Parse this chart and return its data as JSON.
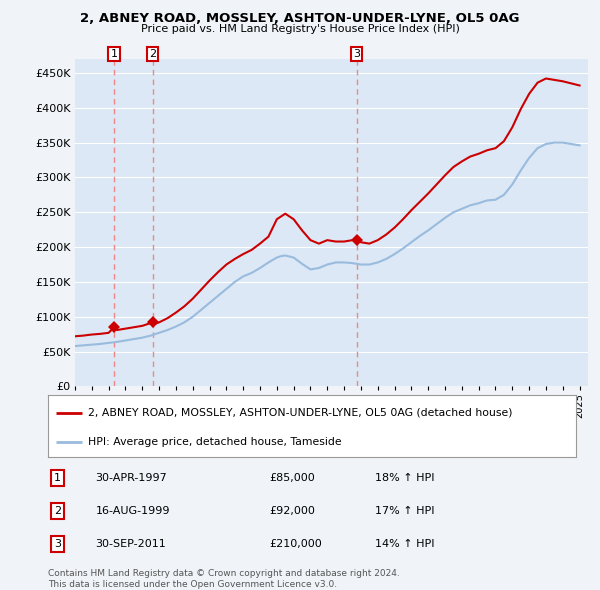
{
  "title": "2, ABNEY ROAD, MOSSLEY, ASHTON-UNDER-LYNE, OL5 0AG",
  "subtitle": "Price paid vs. HM Land Registry's House Price Index (HPI)",
  "property_label": "2, ABNEY ROAD, MOSSLEY, ASHTON-UNDER-LYNE, OL5 0AG (detached house)",
  "hpi_label": "HPI: Average price, detached house, Tameside",
  "copyright": "Contains HM Land Registry data © Crown copyright and database right 2024.\nThis data is licensed under the Open Government Licence v3.0.",
  "sale_points": [
    {
      "date_num": 1997.33,
      "price": 85000,
      "label": "1"
    },
    {
      "date_num": 1999.62,
      "price": 92000,
      "label": "2"
    },
    {
      "date_num": 2011.75,
      "price": 210000,
      "label": "3"
    }
  ],
  "sale_annotations": [
    {
      "label": "1",
      "date": "30-APR-1997",
      "price": "£85,000",
      "hpi_pct": "18% ↑ HPI"
    },
    {
      "label": "2",
      "date": "16-AUG-1999",
      "price": "£92,000",
      "hpi_pct": "17% ↑ HPI"
    },
    {
      "label": "3",
      "date": "30-SEP-2011",
      "price": "£210,000",
      "hpi_pct": "14% ↑ HPI"
    }
  ],
  "vline_dates": [
    1997.33,
    1999.62,
    2011.75
  ],
  "xlim": [
    1995.0,
    2025.5
  ],
  "ylim": [
    0,
    470000
  ],
  "yticks": [
    0,
    50000,
    100000,
    150000,
    200000,
    250000,
    300000,
    350000,
    400000,
    450000
  ],
  "xticks": [
    1995,
    1996,
    1997,
    1998,
    1999,
    2000,
    2001,
    2002,
    2003,
    2004,
    2005,
    2006,
    2007,
    2008,
    2009,
    2010,
    2011,
    2012,
    2013,
    2014,
    2015,
    2016,
    2017,
    2018,
    2019,
    2020,
    2021,
    2022,
    2023,
    2024,
    2025
  ],
  "property_color": "#cc0000",
  "hpi_color": "#99bbdd",
  "vline_color": "#ee8888",
  "background_color": "#f0f4f8",
  "plot_bg_color": "#dce8f5",
  "grid_color": "#ffffff",
  "sale_marker_color": "#cc0000",
  "label_box_color": "#cc0000",
  "hpi_data": [
    [
      1995.0,
      58000
    ],
    [
      1995.25,
      58500
    ],
    [
      1995.5,
      59000
    ],
    [
      1995.75,
      59500
    ],
    [
      1996.0,
      60000
    ],
    [
      1996.25,
      60500
    ],
    [
      1996.5,
      61000
    ],
    [
      1996.75,
      61800
    ],
    [
      1997.0,
      62500
    ],
    [
      1997.25,
      63200
    ],
    [
      1997.5,
      64000
    ],
    [
      1997.75,
      65000
    ],
    [
      1998.0,
      66000
    ],
    [
      1998.25,
      67000
    ],
    [
      1998.5,
      68000
    ],
    [
      1998.75,
      69000
    ],
    [
      1999.0,
      70000
    ],
    [
      1999.25,
      71500
    ],
    [
      1999.5,
      73000
    ],
    [
      1999.75,
      75000
    ],
    [
      2000.0,
      77000
    ],
    [
      2000.25,
      79000
    ],
    [
      2000.5,
      81000
    ],
    [
      2000.75,
      83500
    ],
    [
      2001.0,
      86000
    ],
    [
      2001.25,
      89000
    ],
    [
      2001.5,
      92000
    ],
    [
      2001.75,
      96000
    ],
    [
      2002.0,
      100000
    ],
    [
      2002.25,
      105000
    ],
    [
      2002.5,
      110000
    ],
    [
      2002.75,
      115000
    ],
    [
      2003.0,
      120000
    ],
    [
      2003.25,
      125000
    ],
    [
      2003.5,
      130000
    ],
    [
      2003.75,
      135000
    ],
    [
      2004.0,
      140000
    ],
    [
      2004.25,
      145000
    ],
    [
      2004.5,
      150000
    ],
    [
      2004.75,
      154000
    ],
    [
      2005.0,
      158000
    ],
    [
      2005.25,
      160500
    ],
    [
      2005.5,
      163000
    ],
    [
      2005.75,
      166500
    ],
    [
      2006.0,
      170000
    ],
    [
      2006.25,
      174000
    ],
    [
      2006.5,
      178000
    ],
    [
      2006.75,
      181500
    ],
    [
      2007.0,
      185000
    ],
    [
      2007.25,
      187000
    ],
    [
      2007.5,
      188000
    ],
    [
      2007.75,
      186500
    ],
    [
      2008.0,
      185000
    ],
    [
      2008.25,
      180500
    ],
    [
      2008.5,
      176000
    ],
    [
      2008.75,
      172000
    ],
    [
      2009.0,
      168000
    ],
    [
      2009.25,
      169000
    ],
    [
      2009.5,
      170000
    ],
    [
      2009.75,
      172500
    ],
    [
      2010.0,
      175000
    ],
    [
      2010.25,
      176500
    ],
    [
      2010.5,
      178000
    ],
    [
      2010.75,
      178000
    ],
    [
      2011.0,
      178000
    ],
    [
      2011.25,
      177500
    ],
    [
      2011.5,
      177000
    ],
    [
      2011.75,
      176000
    ],
    [
      2012.0,
      175000
    ],
    [
      2012.25,
      175000
    ],
    [
      2012.5,
      175000
    ],
    [
      2012.75,
      176500
    ],
    [
      2013.0,
      178000
    ],
    [
      2013.25,
      180500
    ],
    [
      2013.5,
      183000
    ],
    [
      2013.75,
      186500
    ],
    [
      2014.0,
      190000
    ],
    [
      2014.25,
      194000
    ],
    [
      2014.5,
      198000
    ],
    [
      2014.75,
      202500
    ],
    [
      2015.0,
      207000
    ],
    [
      2015.25,
      211500
    ],
    [
      2015.5,
      216000
    ],
    [
      2015.75,
      220000
    ],
    [
      2016.0,
      224000
    ],
    [
      2016.25,
      228500
    ],
    [
      2016.5,
      233000
    ],
    [
      2016.75,
      237500
    ],
    [
      2017.0,
      242000
    ],
    [
      2017.25,
      246000
    ],
    [
      2017.5,
      250000
    ],
    [
      2017.75,
      252500
    ],
    [
      2018.0,
      255000
    ],
    [
      2018.25,
      257500
    ],
    [
      2018.5,
      260000
    ],
    [
      2018.75,
      261500
    ],
    [
      2019.0,
      263000
    ],
    [
      2019.25,
      265000
    ],
    [
      2019.5,
      267000
    ],
    [
      2019.75,
      267500
    ],
    [
      2020.0,
      268000
    ],
    [
      2020.25,
      271500
    ],
    [
      2020.5,
      275000
    ],
    [
      2020.75,
      282500
    ],
    [
      2021.0,
      290000
    ],
    [
      2021.25,
      300000
    ],
    [
      2021.5,
      310000
    ],
    [
      2021.75,
      319000
    ],
    [
      2022.0,
      328000
    ],
    [
      2022.25,
      335000
    ],
    [
      2022.5,
      342000
    ],
    [
      2022.75,
      345000
    ],
    [
      2023.0,
      348000
    ],
    [
      2023.25,
      349000
    ],
    [
      2023.5,
      350000
    ],
    [
      2023.75,
      350000
    ],
    [
      2024.0,
      350000
    ],
    [
      2024.25,
      349000
    ],
    [
      2024.5,
      348000
    ],
    [
      2024.75,
      347000
    ],
    [
      2025.0,
      346000
    ]
  ],
  "property_hpi_data": [
    [
      1995.0,
      72000
    ],
    [
      1995.25,
      72500
    ],
    [
      1995.5,
      73000
    ],
    [
      1995.75,
      73800
    ],
    [
      1996.0,
      74500
    ],
    [
      1996.25,
      75000
    ],
    [
      1996.5,
      75500
    ],
    [
      1996.75,
      76200
    ],
    [
      1997.0,
      77000
    ],
    [
      1997.33,
      85000
    ],
    [
      1997.5,
      81000
    ],
    [
      1997.75,
      82000
    ],
    [
      1998.0,
      83000
    ],
    [
      1998.25,
      84000
    ],
    [
      1998.5,
      85000
    ],
    [
      1998.75,
      86000
    ],
    [
      1999.0,
      87000
    ],
    [
      1999.25,
      89000
    ],
    [
      1999.62,
      92000
    ],
    [
      1999.75,
      90000
    ],
    [
      2000.0,
      92000
    ],
    [
      2000.25,
      95000
    ],
    [
      2000.5,
      98000
    ],
    [
      2000.75,
      102000
    ],
    [
      2001.0,
      106000
    ],
    [
      2001.25,
      110500
    ],
    [
      2001.5,
      115000
    ],
    [
      2001.75,
      120500
    ],
    [
      2002.0,
      126000
    ],
    [
      2002.25,
      132500
    ],
    [
      2002.5,
      139000
    ],
    [
      2002.75,
      145500
    ],
    [
      2003.0,
      152000
    ],
    [
      2003.25,
      158000
    ],
    [
      2003.5,
      164000
    ],
    [
      2003.75,
      169500
    ],
    [
      2004.0,
      175000
    ],
    [
      2004.25,
      179000
    ],
    [
      2004.5,
      183000
    ],
    [
      2004.75,
      186500
    ],
    [
      2005.0,
      190000
    ],
    [
      2005.25,
      193000
    ],
    [
      2005.5,
      196000
    ],
    [
      2005.75,
      200500
    ],
    [
      2006.0,
      205000
    ],
    [
      2006.25,
      210000
    ],
    [
      2006.5,
      215000
    ],
    [
      2006.75,
      227500
    ],
    [
      2007.0,
      240000
    ],
    [
      2007.25,
      244000
    ],
    [
      2007.5,
      248000
    ],
    [
      2007.75,
      244000
    ],
    [
      2008.0,
      240000
    ],
    [
      2008.25,
      232000
    ],
    [
      2008.5,
      224000
    ],
    [
      2008.75,
      217000
    ],
    [
      2009.0,
      210000
    ],
    [
      2009.25,
      207500
    ],
    [
      2009.5,
      205000
    ],
    [
      2009.75,
      207500
    ],
    [
      2010.0,
      210000
    ],
    [
      2010.25,
      209000
    ],
    [
      2010.5,
      208000
    ],
    [
      2010.75,
      208000
    ],
    [
      2011.0,
      208000
    ],
    [
      2011.25,
      209000
    ],
    [
      2011.5,
      210000
    ],
    [
      2011.75,
      210000
    ],
    [
      2012.0,
      207000
    ],
    [
      2012.25,
      206000
    ],
    [
      2012.5,
      205000
    ],
    [
      2012.75,
      207500
    ],
    [
      2013.0,
      210000
    ],
    [
      2013.25,
      214000
    ],
    [
      2013.5,
      218000
    ],
    [
      2013.75,
      223000
    ],
    [
      2014.0,
      228000
    ],
    [
      2014.25,
      234000
    ],
    [
      2014.5,
      240000
    ],
    [
      2014.75,
      246500
    ],
    [
      2015.0,
      253000
    ],
    [
      2015.25,
      259000
    ],
    [
      2015.5,
      265000
    ],
    [
      2015.75,
      271000
    ],
    [
      2016.0,
      277000
    ],
    [
      2016.25,
      283500
    ],
    [
      2016.5,
      290000
    ],
    [
      2016.75,
      296500
    ],
    [
      2017.0,
      303000
    ],
    [
      2017.25,
      309000
    ],
    [
      2017.5,
      315000
    ],
    [
      2017.75,
      319000
    ],
    [
      2018.0,
      323000
    ],
    [
      2018.25,
      326500
    ],
    [
      2018.5,
      330000
    ],
    [
      2018.75,
      332000
    ],
    [
      2019.0,
      334000
    ],
    [
      2019.25,
      336500
    ],
    [
      2019.5,
      339000
    ],
    [
      2019.75,
      340500
    ],
    [
      2020.0,
      342000
    ],
    [
      2020.25,
      347000
    ],
    [
      2020.5,
      352000
    ],
    [
      2020.75,
      362000
    ],
    [
      2021.0,
      372000
    ],
    [
      2021.25,
      385000
    ],
    [
      2021.5,
      398000
    ],
    [
      2021.75,
      409000
    ],
    [
      2022.0,
      420000
    ],
    [
      2022.25,
      428000
    ],
    [
      2022.5,
      436000
    ],
    [
      2022.75,
      439000
    ],
    [
      2023.0,
      442000
    ],
    [
      2023.25,
      441000
    ],
    [
      2023.5,
      440000
    ],
    [
      2023.75,
      439000
    ],
    [
      2024.0,
      438000
    ],
    [
      2024.25,
      436500
    ],
    [
      2024.5,
      435000
    ],
    [
      2024.75,
      433500
    ],
    [
      2025.0,
      432000
    ]
  ]
}
